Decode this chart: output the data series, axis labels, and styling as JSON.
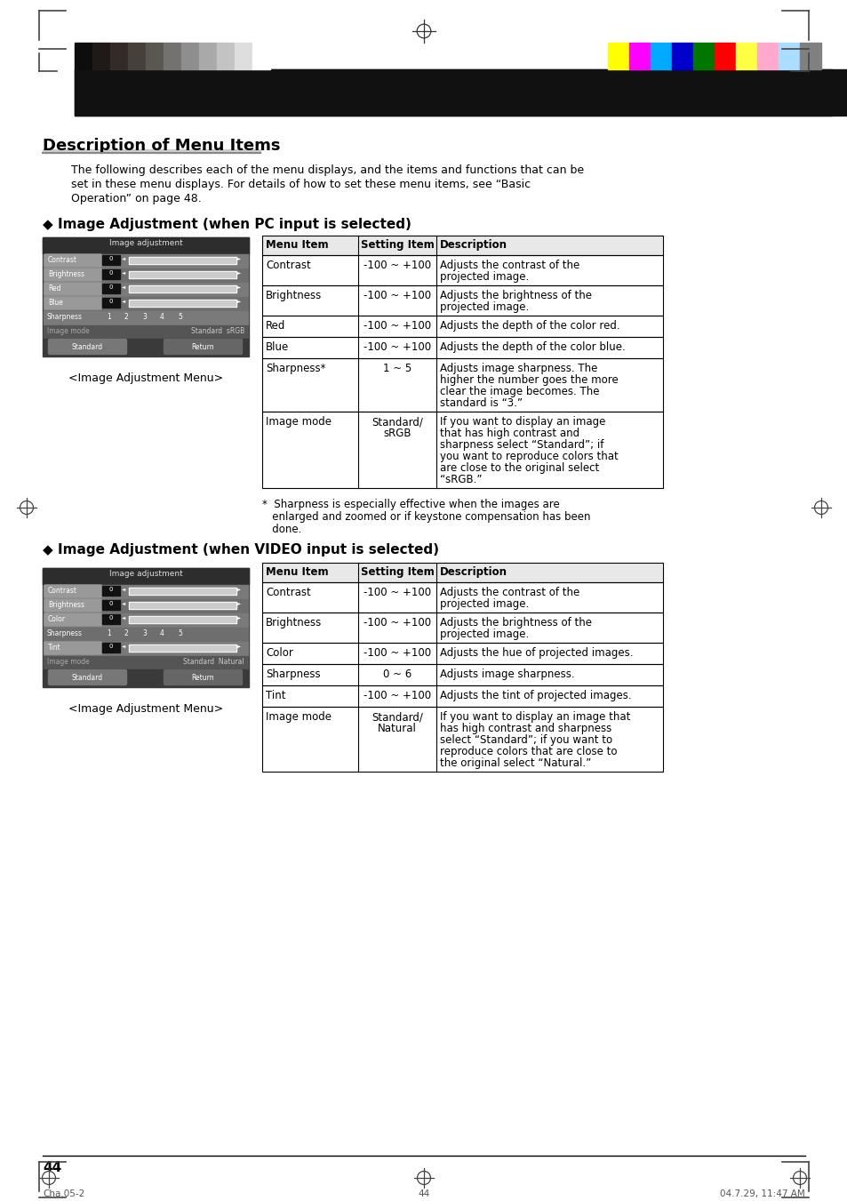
{
  "page_bg": "#ffffff",
  "title": "Description of Menu Items",
  "title_underline_color": "#aaaaaa",
  "intro_text": "The following describes each of the menu displays, and the items and functions that can be\nset in these menu displays. For details of how to set these menu items, see “Basic\nOperation” on page 48.",
  "section1_title": "◆ Image Adjustment (when PC input is selected)",
  "section2_title": "◆ Image Adjustment (when VIDEO input is selected)",
  "footnote": "*  Sharpness is especially effective when the images are\n   enlarged and zoomed or if keystone compensation has been\n   done.",
  "menu_caption": "<Image Adjustment Menu>",
  "page_number": "44",
  "footer_left": "Cha.05-2",
  "footer_center": "44",
  "footer_right": "04.7.29, 11:47 AM",
  "table1_headers": [
    "Menu Item",
    "Setting Item",
    "Description"
  ],
  "table1_rows": [
    [
      "Contrast",
      "-100 ~ +100",
      "Adjusts the contrast of the\nprojected image."
    ],
    [
      "Brightness",
      "-100 ~ +100",
      "Adjusts the brightness of the\nprojected image."
    ],
    [
      "Red",
      "-100 ~ +100",
      "Adjusts the depth of the color red."
    ],
    [
      "Blue",
      "-100 ~ +100",
      "Adjusts the depth of the color blue."
    ],
    [
      "Sharpness*",
      "1 ~ 5",
      "Adjusts image sharpness. The\nhigher the number goes the more\nclear the image becomes. The\nstandard is “3.”"
    ],
    [
      "Image mode",
      "Standard/\nsRGB",
      "If you want to display an image\nthat has high contrast and\nsharpness select “Standard”; if\nyou want to reproduce colors that\nare close to the original select\n“sRGB.”"
    ]
  ],
  "table2_headers": [
    "Menu Item",
    "Setting Item",
    "Description"
  ],
  "table2_rows": [
    [
      "Contrast",
      "-100 ~ +100",
      "Adjusts the contrast of the\nprojected image."
    ],
    [
      "Brightness",
      "-100 ~ +100",
      "Adjusts the brightness of the\nprojected image."
    ],
    [
      "Color",
      "-100 ~ +100",
      "Adjusts the hue of projected images."
    ],
    [
      "Sharpness",
      "0 ~ 6",
      "Adjusts image sharpness."
    ],
    [
      "Tint",
      "-100 ~ +100",
      "Adjusts the tint of projected images."
    ],
    [
      "Image mode",
      "Standard/\nNatural",
      "If you want to display an image that\nhas high contrast and sharpness\nselect “Standard”; if you want to\nreproduce colors that are close to\nthe original select “Natural.”"
    ]
  ],
  "grayscale_colors": [
    "#0d0d0d",
    "#1f1a18",
    "#322b27",
    "#45413a",
    "#5a5651",
    "#747270",
    "#8e8e8e",
    "#a9a9a9",
    "#c4c3c3",
    "#dedede",
    "#ffffff"
  ],
  "color_bars": [
    "#ffff00",
    "#ff00ff",
    "#00aaff",
    "#0000cc",
    "#007700",
    "#ff0000",
    "#ffff44",
    "#ffaacc",
    "#aaddff",
    "#808080"
  ],
  "pc_menu_rows": [
    "Contrast",
    "Brightness",
    "Red",
    "Blue",
    "Sharpness",
    "Image mode"
  ],
  "video_menu_rows": [
    "Contrast",
    "Brightness",
    "Color",
    "Sharpness",
    "Tint",
    "Image mode"
  ],
  "pc_image_mode_text": "Standard  sRGB",
  "video_image_mode_text": "Standard  Natural"
}
